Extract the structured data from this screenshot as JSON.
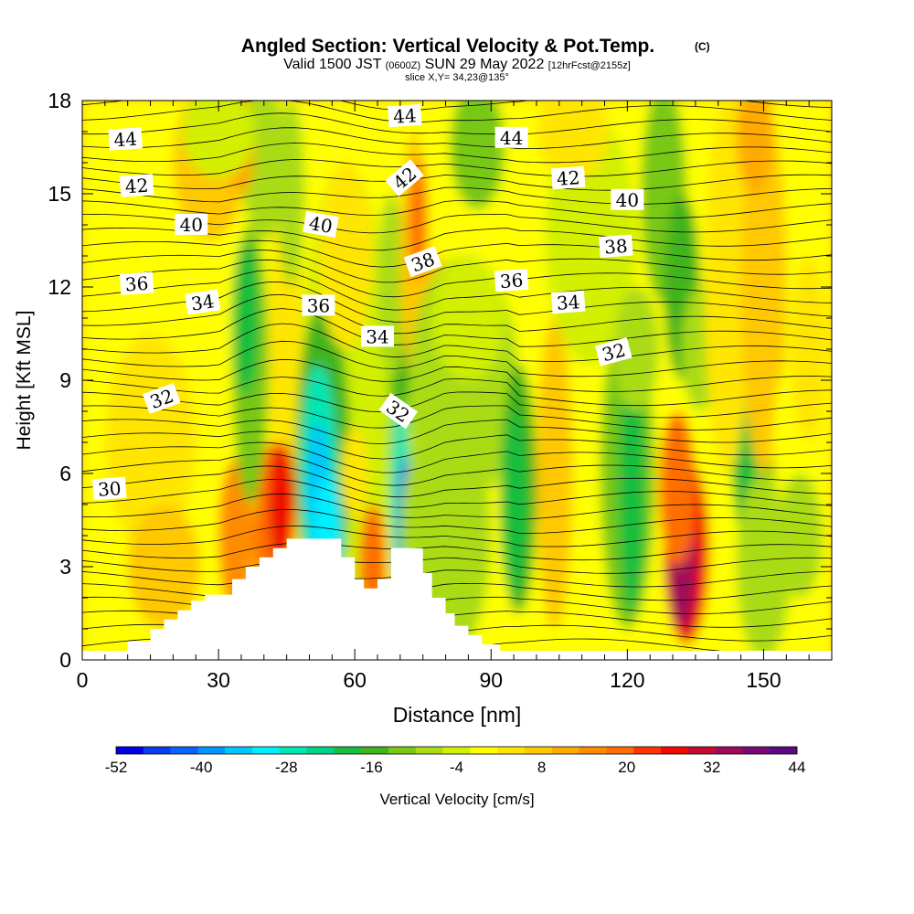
{
  "chart_data": {
    "type": "heatmap",
    "title": "Angled Section: Vertical Velocity & Pot.Temp.",
    "title_mark": "(C)",
    "subtitle_main_a": "Valid 1500 JST",
    "subtitle_small_a": "(0600Z)",
    "subtitle_main_b": "SUN 29 May 2022",
    "subtitle_small_b": "[12hrFcst@2155z]",
    "slice": "slice X,Y= 34,23@135°",
    "xlabel": "Distance [nm]",
    "ylabel": "Height [Kft MSL]",
    "xlim": [
      0,
      165
    ],
    "ylim": [
      0,
      18
    ],
    "x_ticks": [
      "0",
      "30",
      "60",
      "90",
      "120",
      "150"
    ],
    "y_ticks": [
      "0",
      "3",
      "6",
      "9",
      "12",
      "15",
      "18"
    ],
    "colorbar": {
      "label": "Vertical Velocity [cm/s]",
      "tick_labels": [
        "-52",
        "-40",
        "-28",
        "-16",
        "-4",
        "8",
        "20",
        "32",
        "44"
      ],
      "levels": [
        -52,
        -48,
        -44,
        -40,
        -36,
        -32,
        -28,
        -24,
        -20,
        -16,
        -12,
        -8,
        -4,
        0,
        4,
        8,
        12,
        16,
        20,
        24,
        28,
        32,
        36,
        40,
        44
      ],
      "colors": [
        "#0000e6",
        "#0a3cf0",
        "#0a64fa",
        "#0096ff",
        "#00c8ff",
        "#00f0ff",
        "#00e6b4",
        "#00d28c",
        "#19be3c",
        "#41b41e",
        "#78c814",
        "#aadc14",
        "#d2f000",
        "#ffff00",
        "#ffe600",
        "#ffc800",
        "#ffaa00",
        "#ff8c00",
        "#ff6e00",
        "#ff3200",
        "#f00a00",
        "#c80a32",
        "#a00a5a",
        "#780a78",
        "#5a0a82"
      ]
    },
    "contour_labels": [
      {
        "text": "44",
        "x": 9.5,
        "y": 16.75,
        "rot": -4
      },
      {
        "text": "44",
        "x": 71,
        "y": 17.5,
        "rot": -4
      },
      {
        "text": "44",
        "x": 94.5,
        "y": 16.8,
        "rot": 0
      },
      {
        "text": "42",
        "x": 12,
        "y": 15.25,
        "rot": -4
      },
      {
        "text": "42",
        "x": 71,
        "y": 15.5,
        "rot": -40
      },
      {
        "text": "42",
        "x": 107,
        "y": 15.5,
        "rot": -4
      },
      {
        "text": "40",
        "x": 24,
        "y": 14.0,
        "rot": 0
      },
      {
        "text": "40",
        "x": 52.5,
        "y": 14.0,
        "rot": 10
      },
      {
        "text": "40",
        "x": 120,
        "y": 14.8,
        "rot": 0
      },
      {
        "text": "38",
        "x": 75,
        "y": 12.8,
        "rot": -20
      },
      {
        "text": "38",
        "x": 117.5,
        "y": 13.3,
        "rot": -4
      },
      {
        "text": "36",
        "x": 12,
        "y": 12.1,
        "rot": -4
      },
      {
        "text": "36",
        "x": 52,
        "y": 11.4,
        "rot": 0
      },
      {
        "text": "36",
        "x": 94.5,
        "y": 12.2,
        "rot": -4
      },
      {
        "text": "34",
        "x": 26.5,
        "y": 11.5,
        "rot": -8
      },
      {
        "text": "34",
        "x": 65,
        "y": 10.4,
        "rot": 0
      },
      {
        "text": "34",
        "x": 107,
        "y": 11.5,
        "rot": -4
      },
      {
        "text": "32",
        "x": 17.5,
        "y": 8.4,
        "rot": -20
      },
      {
        "text": "32",
        "x": 69.5,
        "y": 8.0,
        "rot": 35
      },
      {
        "text": "32",
        "x": 117,
        "y": 9.9,
        "rot": -15
      },
      {
        "text": "30",
        "x": 6,
        "y": 5.5,
        "rot": -4
      }
    ]
  }
}
